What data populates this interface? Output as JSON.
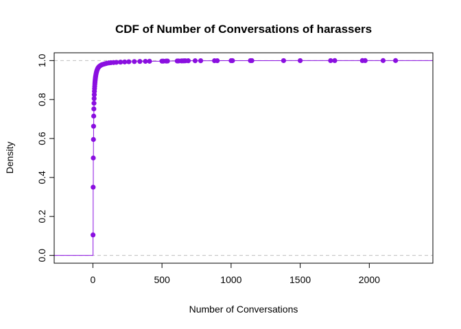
{
  "chart_data": {
    "type": "scatter",
    "title": "CDF of Number of Conversations of harassers",
    "xlabel": "Number of Conversations",
    "ylabel": "Density",
    "xlim": [
      -280,
      2460
    ],
    "ylim": [
      -0.04,
      1.04
    ],
    "xticks": [
      0,
      500,
      1000,
      1500,
      2000
    ],
    "yticks": [
      0.0,
      0.2,
      0.4,
      0.6,
      0.8,
      1.0
    ],
    "xtick_labels": [
      "0",
      "500",
      "1000",
      "1500",
      "2000"
    ],
    "ytick_labels": [
      "0.0",
      "0.2",
      "0.4",
      "0.6",
      "0.8",
      "1.0"
    ],
    "reference_lines_y": [
      0,
      1
    ],
    "series_color": "#8a0fe0",
    "reference_line_color": "#bebebe",
    "x": [
      1,
      2,
      3,
      4,
      5,
      6,
      7,
      8,
      9,
      10,
      11,
      12,
      13,
      14,
      15,
      16,
      17,
      18,
      19,
      20,
      22,
      24,
      26,
      28,
      30,
      33,
      36,
      40,
      45,
      50,
      56,
      63,
      70,
      80,
      90,
      100,
      115,
      130,
      150,
      170,
      200,
      230,
      260,
      300,
      340,
      380,
      410,
      500,
      510,
      530,
      540,
      610,
      620,
      640,
      650,
      660,
      670,
      690,
      740,
      780,
      880,
      900,
      1000,
      1010,
      1140,
      1150,
      1380,
      1500,
      1720,
      1750,
      1950,
      1970,
      2100,
      2190
    ],
    "y": [
      0.105,
      0.35,
      0.5,
      0.595,
      0.663,
      0.715,
      0.752,
      0.781,
      0.805,
      0.825,
      0.842,
      0.856,
      0.868,
      0.879,
      0.888,
      0.896,
      0.903,
      0.909,
      0.915,
      0.92,
      0.928,
      0.935,
      0.941,
      0.946,
      0.951,
      0.956,
      0.961,
      0.965,
      0.969,
      0.972,
      0.975,
      0.978,
      0.98,
      0.982,
      0.984,
      0.986,
      0.988,
      0.989,
      0.99,
      0.991,
      0.992,
      0.993,
      0.994,
      0.995,
      0.9955,
      0.996,
      0.9965,
      0.997,
      0.9972,
      0.9974,
      0.9976,
      0.9978,
      0.998,
      0.9982,
      0.9984,
      0.9986,
      0.9988,
      0.999,
      0.9991,
      0.9992,
      0.9993,
      0.9994,
      0.9995,
      0.9996,
      0.9997,
      0.9997,
      0.9998,
      0.9998,
      0.9998,
      0.9999,
      0.9999,
      0.9999,
      1.0,
      1.0
    ]
  }
}
